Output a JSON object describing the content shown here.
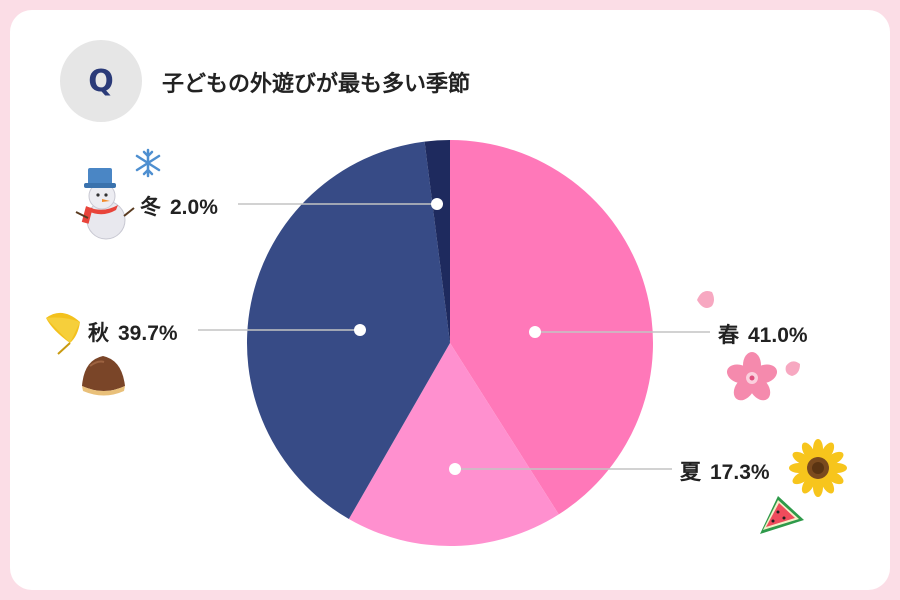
{
  "badge": "Q",
  "title": "子どもの外遊びが最も多い季節",
  "icons": [
    "snowman-icon",
    "snowflake-icon",
    "ginkgo-leaf-icon",
    "chestnut-icon",
    "sakura-petal-icon",
    "sakura-flower-icon",
    "sunflower-icon",
    "watermelon-icon"
  ],
  "chart_data": {
    "type": "pie",
    "title": "子どもの外遊びが最も多い季節",
    "slices": [
      {
        "name": "春",
        "value": 41.0,
        "label": "41.0%",
        "color": "#ff78b9"
      },
      {
        "name": "夏",
        "value": 17.3,
        "label": "17.3%",
        "color": "#ff90cf"
      },
      {
        "name": "秋",
        "value": 39.7,
        "label": "39.7%",
        "color": "#374b86"
      },
      {
        "name": "冬",
        "value": 2.0,
        "label": "2.0%",
        "color": "#1e2a5e"
      }
    ],
    "legend": "none"
  }
}
